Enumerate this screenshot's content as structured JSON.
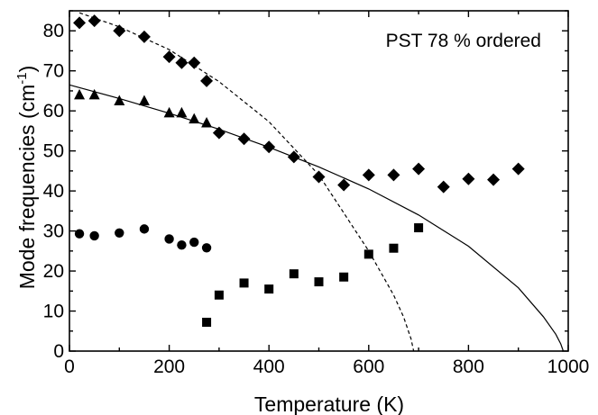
{
  "chart_data": {
    "type": "scatter",
    "title": "",
    "annotation": "PST 78 % ordered",
    "xlabel": "Temperature  (K)",
    "ylabel": "Mode frequencies  (cm",
    "ylabel_sup": "-1",
    "ylabel_close": ")",
    "xlim": [
      0,
      1000
    ],
    "ylim": [
      0,
      85
    ],
    "xticks": [
      0,
      200,
      400,
      600,
      800,
      1000
    ],
    "yticks": [
      0,
      10,
      20,
      30,
      40,
      50,
      60,
      70,
      80
    ],
    "grid": false,
    "series": [
      {
        "marker": "diamond",
        "x": [
          20,
          50,
          100,
          150,
          200,
          225,
          250,
          275,
          300,
          350,
          400,
          450,
          500,
          550,
          600,
          650,
          700,
          750,
          800,
          850,
          900
        ],
        "y": [
          82,
          82.5,
          80,
          78.5,
          73.5,
          72,
          72,
          67.5,
          54.5,
          53,
          51,
          48.5,
          43.5,
          41.5,
          44,
          44,
          45.5,
          41,
          43,
          42.8,
          45.5
        ]
      },
      {
        "marker": "triangle",
        "x": [
          20,
          50,
          100,
          150,
          200,
          225,
          250,
          275
        ],
        "y": [
          64,
          64,
          62.5,
          62.5,
          59.5,
          59.5,
          58,
          57
        ]
      },
      {
        "marker": "circle",
        "x": [
          20,
          50,
          100,
          150,
          200,
          225,
          250,
          275
        ],
        "y": [
          29.3,
          28.8,
          29.5,
          30.5,
          28,
          26.5,
          27.2,
          25.8
        ]
      },
      {
        "marker": "square",
        "x": [
          275,
          300,
          350,
          400,
          450,
          500,
          550,
          600,
          650,
          700
        ],
        "y": [
          7.2,
          14,
          17,
          15.5,
          19.3,
          17.3,
          18.5,
          24.2,
          25.7,
          30.8
        ]
      }
    ],
    "fits": [
      {
        "style": "solid",
        "x": [
          0,
          100,
          200,
          300,
          400,
          500,
          600,
          700,
          800,
          900,
          950,
          975,
          985,
          990
        ],
        "y": [
          66.5,
          63.1,
          59.4,
          55.4,
          50.9,
          46.0,
          40.5,
          34.0,
          26.2,
          15.8,
          8.6,
          4.2,
          1.8,
          0
        ]
      },
      {
        "style": "dashed",
        "x": [
          20,
          100,
          200,
          300,
          400,
          500,
          600,
          650,
          670,
          685,
          690
        ],
        "y": [
          84.5,
          81.0,
          75.3,
          67.3,
          57.3,
          44.0,
          25.0,
          14.0,
          8.5,
          3.0,
          0
        ]
      }
    ]
  }
}
